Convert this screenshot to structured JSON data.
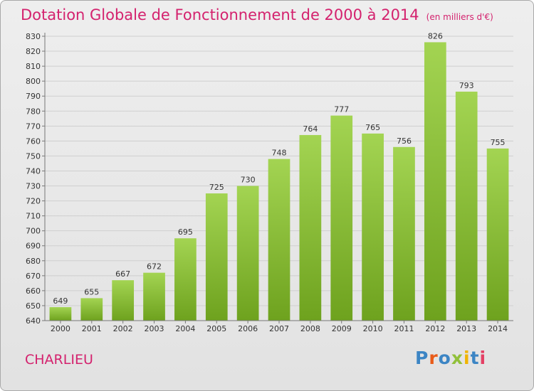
{
  "header": {
    "title": "Dotation Globale de Fonctionnement de 2000 à 2014",
    "subtitle": "(en milliers d'€)"
  },
  "footer": {
    "commune": "CHARLIEU",
    "logo_text": "Proxiti",
    "logo_colors": [
      "#3c85c4",
      "#e95b19",
      "#3c85c4",
      "#91c03a",
      "#f0b400",
      "#3c85c4",
      "#e43f64"
    ]
  },
  "colors": {
    "bar_top": "#a3d452",
    "bar_bottom": "#6ea21e",
    "accent": "#d4226e"
  },
  "chart_data": {
    "type": "bar",
    "categories": [
      "2000",
      "2001",
      "2002",
      "2003",
      "2004",
      "2005",
      "2006",
      "2007",
      "2008",
      "2009",
      "2010",
      "2011",
      "2012",
      "2013",
      "2014"
    ],
    "values": [
      649,
      655,
      667,
      672,
      695,
      725,
      730,
      748,
      764,
      777,
      765,
      756,
      826,
      793,
      755
    ],
    "ylim": [
      640,
      830
    ],
    "ytick_step": 10,
    "grid": true,
    "legend": "none"
  }
}
